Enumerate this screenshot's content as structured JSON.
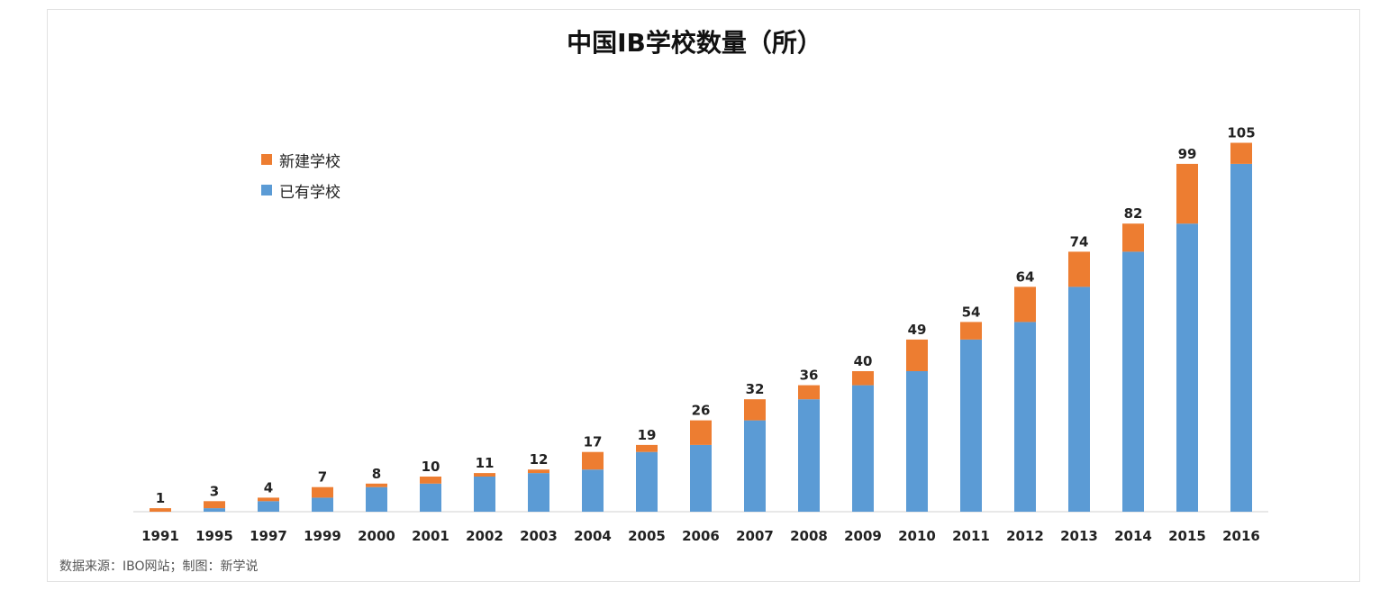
{
  "chart_data": {
    "type": "bar",
    "stacked": true,
    "title": "中国IB学校数量（所）",
    "categories": [
      "1991",
      "1995",
      "1997",
      "1999",
      "2000",
      "2001",
      "2002",
      "2003",
      "2004",
      "2005",
      "2006",
      "2007",
      "2008",
      "2009",
      "2010",
      "2011",
      "2012",
      "2013",
      "2014",
      "2015",
      "2016"
    ],
    "totals": [
      1,
      3,
      4,
      7,
      8,
      10,
      11,
      12,
      17,
      19,
      26,
      32,
      36,
      40,
      49,
      54,
      64,
      74,
      82,
      99,
      105
    ],
    "series": [
      {
        "name": "已有学校",
        "color": "#5b9bd5",
        "values": [
          0,
          1,
          3,
          4,
          7,
          8,
          10,
          11,
          12,
          17,
          19,
          26,
          32,
          36,
          40,
          49,
          54,
          64,
          74,
          82,
          99
        ]
      },
      {
        "name": "新建学校",
        "color": "#ed7d31",
        "values": [
          1,
          2,
          1,
          3,
          1,
          2,
          1,
          1,
          5,
          2,
          7,
          6,
          4,
          4,
          9,
          5,
          10,
          10,
          8,
          17,
          6
        ]
      }
    ],
    "legend_order": [
      "新建学校",
      "已有学校"
    ],
    "legend_position": "top-left",
    "ylim": [
      0,
      110
    ],
    "grid": false,
    "source_note": "数据来源：IBO网站；制图：新学说"
  }
}
